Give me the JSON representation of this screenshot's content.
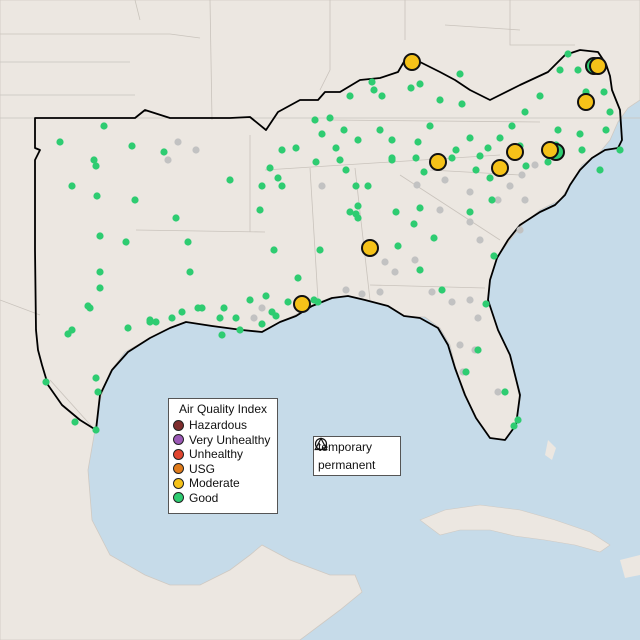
{
  "legend": {
    "title": "Air Quality Index",
    "categories": [
      {
        "label": "Hazardous",
        "color": "#7e2d2d"
      },
      {
        "label": "Very Unhealthy",
        "color": "#9b59b6"
      },
      {
        "label": "Unhealthy",
        "color": "#e0452f"
      },
      {
        "label": "USG",
        "color": "#e07b1a"
      },
      {
        "label": "Moderate",
        "color": "#f5c219"
      },
      {
        "label": "Good",
        "color": "#2ecc71"
      }
    ]
  },
  "shape_legend": {
    "temporary": "temporary",
    "permanent": "permanent"
  },
  "colors": {
    "ocean": "#c6dbe9",
    "land": "#ece7e1",
    "inactive": "#c2c2c2",
    "region_outline": "#000000"
  }
}
